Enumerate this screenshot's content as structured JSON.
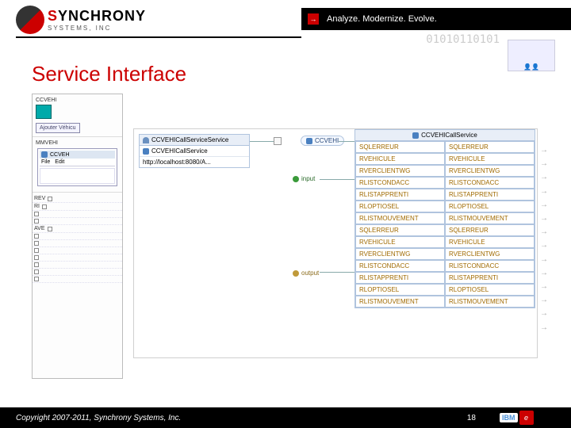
{
  "brand": {
    "name_part1": "S",
    "name_part2": "YNCHRONY",
    "subline": "SYSTEMS, INC",
    "tagline": "Analyze. Modernize. Evolve.",
    "binary_decor": "01010110101"
  },
  "slide": {
    "title": "Service Interface",
    "page_number": "18",
    "copyright": "Copyright 2007-2011, Synchrony Systems, Inc."
  },
  "left_panel": {
    "top_label": "CCVEHI",
    "action_button": "Ajouter Véhicu",
    "section2_label": "MMVEHI",
    "mini_window_title": "CCVEH",
    "menu_file": "File",
    "menu_edit": "Edit",
    "row_labels": [
      "REV",
      "RI",
      "",
      "AVE"
    ]
  },
  "service_box_left": {
    "header": "CCVEHICallServiceService",
    "row1": "CCVEHICallService",
    "row2": "http://localhost:8080/A..."
  },
  "ccvehi_pill": "CCVEHI",
  "io": {
    "input": "input",
    "output": "output"
  },
  "service_box_right": {
    "header": "CCVEHICallService",
    "rows": [
      [
        "SQLERREUR",
        "SQLERREUR"
      ],
      [
        "RVEHICULE",
        "RVEHICULE"
      ],
      [
        "RVERCLIENTWG",
        "RVERCLIENTWG"
      ],
      [
        "RLISTCONDACC",
        "RLISTCONDACC"
      ],
      [
        "RLISTAPPRENTI",
        "RLISTAPPRENTI"
      ],
      [
        "RLOPTIOSEL",
        "RLOPTIOSEL"
      ],
      [
        "RLISTMOUVEMENT",
        "RLISTMOUVEMENT"
      ],
      [
        "SQLERREUR",
        "SQLERREUR"
      ],
      [
        "RVEHICULE",
        "RVEHICULE"
      ],
      [
        "RVERCLIENTWG",
        "RVERCLIENTWG"
      ],
      [
        "RLISTCONDACC",
        "RLISTCONDACC"
      ],
      [
        "RLISTAPPRENTI",
        "RLISTAPPRENTI"
      ],
      [
        "RLOPTIOSEL",
        "RLOPTIOSEL"
      ],
      [
        "RLISTMOUVEMENT",
        "RLISTMOUVEMENT"
      ]
    ]
  },
  "partner": {
    "ibm": "IBM",
    "bp_glyph": "e"
  },
  "colors": {
    "brand_red": "#c00000",
    "panel_border": "#b0c4de",
    "cell_text": "#a06a00",
    "header_bg": "#e8eef7"
  }
}
